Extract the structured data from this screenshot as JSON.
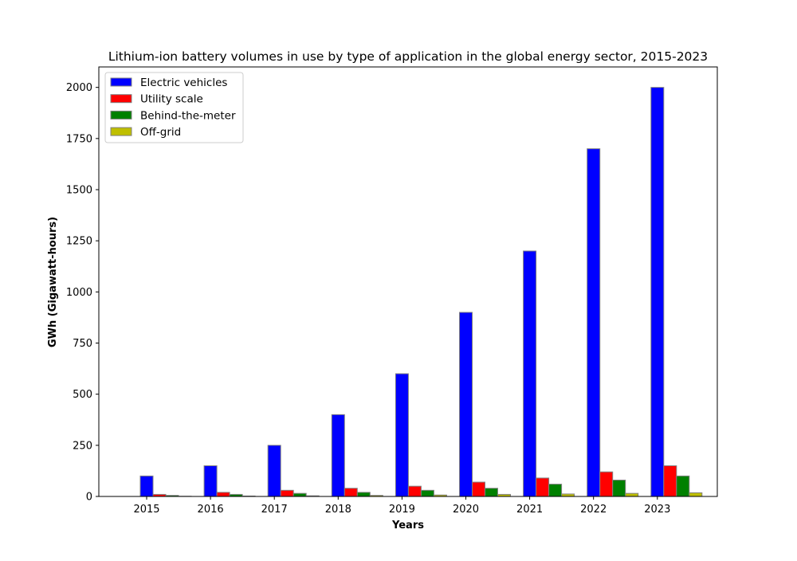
{
  "chart_data": {
    "type": "bar",
    "title": "Lithium-ion battery volumes in use by type of application in the global energy sector, 2015-2023",
    "xlabel": "Years",
    "ylabel": "GWh (Gigawatt-hours)",
    "categories": [
      "2015",
      "2016",
      "2017",
      "2018",
      "2019",
      "2020",
      "2021",
      "2022",
      "2023"
    ],
    "series": [
      {
        "name": "Electric vehicles",
        "color": "#0000ff",
        "values": [
          100,
          150,
          250,
          400,
          600,
          900,
          1200,
          1700,
          2000
        ]
      },
      {
        "name": "Utility scale",
        "color": "#ff0000",
        "values": [
          10,
          20,
          30,
          40,
          50,
          70,
          90,
          120,
          150
        ]
      },
      {
        "name": "Behind-the-meter",
        "color": "#008000",
        "values": [
          5,
          10,
          15,
          20,
          30,
          40,
          60,
          80,
          100
        ]
      },
      {
        "name": "Off-grid",
        "color": "#bfbf00",
        "values": [
          1,
          2,
          3,
          5,
          7,
          10,
          12,
          15,
          18
        ]
      }
    ],
    "ylim": [
      0,
      2100
    ],
    "yticks": [
      0,
      250,
      500,
      750,
      1000,
      1250,
      1500,
      1750,
      2000
    ],
    "grid": false,
    "legend_position": "top-left",
    "bar_edge_color": "#808080"
  }
}
